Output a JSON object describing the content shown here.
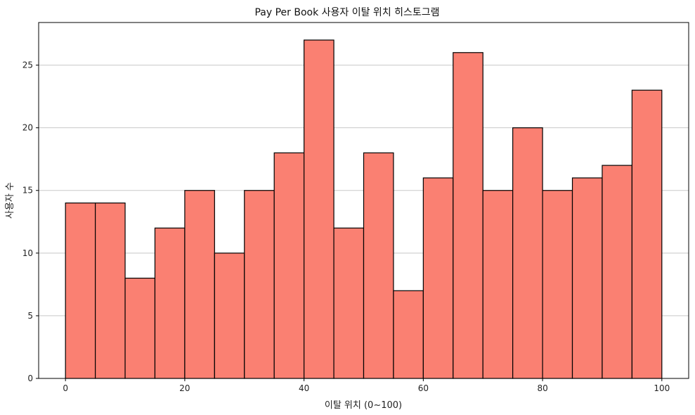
{
  "chart_data": {
    "type": "bar",
    "title": "Pay Per Book 사용자 이탈 위치 히스토그램",
    "xlabel": "이탈 위치 (0~100)",
    "ylabel": "사용자 수",
    "bin_edges": [
      0,
      5,
      10,
      15,
      20,
      25,
      30,
      35,
      40,
      45,
      50,
      55,
      60,
      65,
      70,
      75,
      80,
      85,
      90,
      95,
      100
    ],
    "values": [
      14,
      14,
      8,
      12,
      15,
      10,
      15,
      18,
      27,
      12,
      18,
      7,
      16,
      26,
      15,
      20,
      15,
      16,
      17,
      23
    ],
    "xlim": [
      -4.5,
      104.5
    ],
    "ylim": [
      0,
      28.4
    ],
    "x_ticks": [
      0,
      20,
      40,
      60,
      80,
      100
    ],
    "y_ticks": [
      0,
      5,
      10,
      15,
      20,
      25
    ],
    "grid": "y",
    "bar_color": "#fa8072",
    "edge_color": "#000000"
  }
}
